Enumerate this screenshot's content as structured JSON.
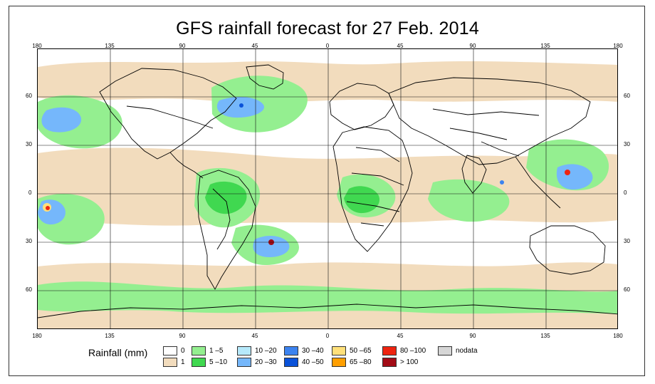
{
  "title": "GFS rainfall forecast for 27 Feb. 2014",
  "map": {
    "longitude_ticks": [
      "180",
      "135",
      "90",
      "45",
      "0",
      "45",
      "90",
      "135",
      "180"
    ],
    "latitude_ticks": [
      "60",
      "30",
      "0",
      "30",
      "60"
    ]
  },
  "legend": {
    "title": "Rainfall (mm)",
    "items": [
      {
        "label": "0",
        "color": "#ffffff"
      },
      {
        "label": "1",
        "color": "#f2dcbd"
      },
      {
        "label": "1 –5",
        "color": "#94ef90"
      },
      {
        "label": "5 –10",
        "color": "#40d850"
      },
      {
        "label": "10 –20",
        "color": "#b6e9fb"
      },
      {
        "label": "20 –30",
        "color": "#75b7fb"
      },
      {
        "label": "30 –40",
        "color": "#3c83ef"
      },
      {
        "label": "40 –50",
        "color": "#0a52d9"
      },
      {
        "label": "50 –65",
        "color": "#ffe07a"
      },
      {
        "label": "65 –80",
        "color": "#ff9f00"
      },
      {
        "label": "80 –100",
        "color": "#ee2410"
      },
      {
        "label": "> 100",
        "color": "#a20b16"
      },
      {
        "label": "nodata",
        "color": "#d6d6d6"
      }
    ]
  }
}
